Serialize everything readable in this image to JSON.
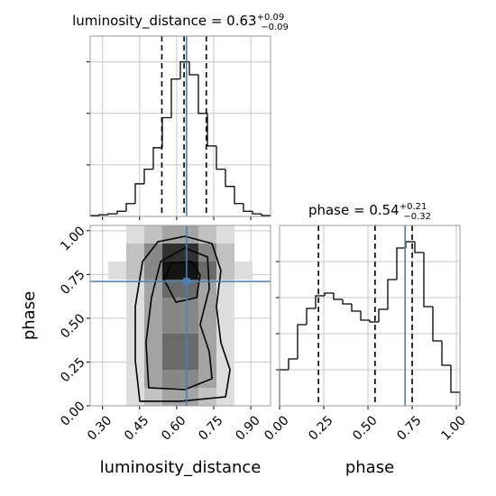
{
  "chart_data": [
    {
      "type": "histogram",
      "title": "luminosity_distance = 0.63",
      "title_plus": "+0.09",
      "title_minus": "−0.09",
      "bins": [
        0.25,
        0.2865,
        0.323,
        0.3595,
        0.396,
        0.4325,
        0.469,
        0.5055,
        0.542,
        0.5785,
        0.615,
        0.6515,
        0.688,
        0.7245,
        0.761,
        0.7975,
        0.834,
        0.8705,
        0.907,
        0.9435,
        0.98
      ],
      "counts": [
        1,
        2,
        3,
        6,
        15,
        38,
        55,
        80,
        115,
        160,
        180,
        165,
        120,
        82,
        55,
        35,
        15,
        6,
        3,
        1
      ],
      "xlim": [
        0.25,
        0.98
      ],
      "ylim": [
        0,
        210
      ],
      "xticks": [
        0.3,
        0.45,
        0.6,
        0.75,
        0.9
      ],
      "yticks": [
        60,
        120,
        180
      ],
      "quantiles": [
        0.54,
        0.63,
        0.72
      ],
      "truth": 0.64,
      "color": "#000000",
      "truth_color": "#4a7fb0",
      "grid": true
    },
    {
      "type": "hist2d",
      "xlabel": "luminosity_distance",
      "ylabel": "phase",
      "xbins": [
        0.25,
        0.323,
        0.396,
        0.469,
        0.542,
        0.615,
        0.688,
        0.761,
        0.834,
        0.907,
        0.98
      ],
      "ybins": [
        0,
        0.103,
        0.206,
        0.309,
        0.412,
        0.515,
        0.618,
        0.721,
        0.824,
        0.927,
        1.03
      ],
      "counts": [
        [
          0,
          0,
          1,
          2,
          3,
          3,
          2,
          1,
          0,
          0
        ],
        [
          0,
          0,
          1,
          3,
          4,
          4,
          3,
          1,
          0,
          0
        ],
        [
          0,
          0,
          1,
          3,
          5,
          5,
          3,
          1,
          0,
          0
        ],
        [
          0,
          0,
          1,
          3,
          5,
          5,
          3,
          1,
          0,
          0
        ],
        [
          0,
          0,
          1,
          3,
          4,
          4,
          3,
          1,
          0,
          0
        ],
        [
          0,
          0,
          1,
          3,
          4,
          4,
          3,
          1,
          0,
          0
        ],
        [
          0,
          0,
          1,
          3,
          5,
          5,
          3,
          1,
          0,
          0
        ],
        [
          0,
          1,
          2,
          4,
          8,
          8,
          5,
          2,
          1,
          0
        ],
        [
          0,
          0,
          2,
          4,
          7,
          7,
          4,
          2,
          0,
          0
        ],
        [
          0,
          0,
          1,
          2,
          3,
          3,
          2,
          1,
          0,
          0
        ]
      ],
      "contours": [
        [
          [
            0.451,
            0.026
          ],
          [
            0.4325,
            0.2575
          ],
          [
            0.4325,
            0.5665
          ],
          [
            0.462,
            0.824
          ],
          [
            0.524,
            0.937
          ],
          [
            0.633,
            0.968
          ],
          [
            0.743,
            0.927
          ],
          [
            0.779,
            0.773
          ],
          [
            0.761,
            0.567
          ],
          [
            0.779,
            0.361
          ],
          [
            0.816,
            0.206
          ],
          [
            0.798,
            0.0515
          ],
          [
            0.615,
            0.026
          ]
        ],
        [
          [
            0.487,
            0.103
          ],
          [
            0.476,
            0.361
          ],
          [
            0.498,
            0.618
          ],
          [
            0.535,
            0.824
          ],
          [
            0.633,
            0.901
          ],
          [
            0.725,
            0.85
          ],
          [
            0.732,
            0.67
          ],
          [
            0.695,
            0.464
          ],
          [
            0.732,
            0.309
          ],
          [
            0.743,
            0.155
          ],
          [
            0.633,
            0.093
          ]
        ],
        [
          [
            0.549,
            0.721
          ],
          [
            0.579,
            0.814
          ],
          [
            0.659,
            0.824
          ],
          [
            0.695,
            0.747
          ],
          [
            0.681,
            0.618
          ],
          [
            0.597,
            0.592
          ]
        ]
      ],
      "xlim": [
        0.25,
        0.98
      ],
      "ylim": [
        0,
        1.03
      ],
      "xticks": [
        {
          "value": 0.3,
          "label": "0.30"
        },
        {
          "value": 0.45,
          "label": "0.45"
        },
        {
          "value": 0.6,
          "label": "0.60"
        },
        {
          "value": 0.75,
          "label": "0.75"
        },
        {
          "value": 0.9,
          "label": "0.90"
        }
      ],
      "yticks": [
        {
          "value": 0,
          "label": "0.00"
        },
        {
          "value": 0.25,
          "label": "0.25"
        },
        {
          "value": 0.5,
          "label": "0.50"
        },
        {
          "value": 0.75,
          "label": "0.75"
        },
        {
          "value": 1,
          "label": "1.00"
        }
      ],
      "truth_x": 0.64,
      "truth_y": 0.71,
      "truth_color": "#4a7fb0",
      "color": "#000000",
      "grid": true
    },
    {
      "type": "histogram",
      "title": "phase = 0.54",
      "title_plus": "+0.21",
      "title_minus": "−0.32",
      "xlabel": "phase",
      "bins": [
        0,
        0.051,
        0.102,
        0.153,
        0.204,
        0.255,
        0.306,
        0.357,
        0.408,
        0.459,
        0.51,
        0.561,
        0.612,
        0.663,
        0.714,
        0.765,
        0.816,
        0.867,
        0.918,
        0.969,
        1.02
      ],
      "counts": [
        40,
        52,
        90,
        108,
        122,
        125,
        118,
        113,
        105,
        95,
        93,
        107,
        140,
        175,
        182,
        170,
        110,
        72,
        45,
        15
      ],
      "xlim": [
        0,
        1.02
      ],
      "ylim": [
        0,
        200
      ],
      "xticks": [
        {
          "value": 0,
          "label": "0.00"
        },
        {
          "value": 0.25,
          "label": "0.25"
        },
        {
          "value": 0.5,
          "label": "0.50"
        },
        {
          "value": 0.75,
          "label": "0.75"
        },
        {
          "value": 1,
          "label": "1.00"
        }
      ],
      "yticks": [
        40,
        80,
        120,
        160
      ],
      "quantiles": [
        0.22,
        0.54,
        0.75
      ],
      "truth": 0.71,
      "color": "#000000",
      "truth_color": "#4a7fb0",
      "grid": true
    }
  ]
}
